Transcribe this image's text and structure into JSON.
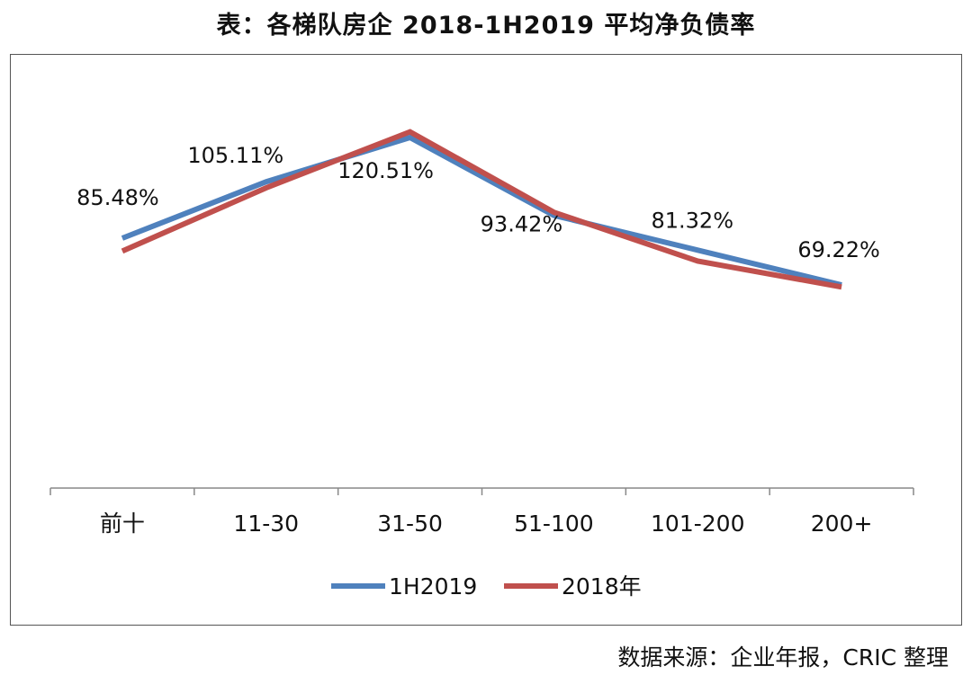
{
  "title": "表：各梯队房企 2018-1H2019 平均净负债率",
  "source": "数据来源：企业年报，CRIC 整理",
  "chart_data": {
    "type": "line",
    "title": "表：各梯队房企 2018-1H2019 平均净负债率",
    "categories": [
      "前十",
      "11-30",
      "31-50",
      "51-100",
      "101-200",
      "200+"
    ],
    "series": [
      {
        "name": "1H2019",
        "color": "#4F81BD",
        "values": [
          85.48,
          105.11,
          120.51,
          93.42,
          81.32,
          69.22
        ],
        "labels": [
          "85.48%",
          "105.11%",
          "120.51%",
          "93.42%",
          "81.32%",
          "69.22%"
        ]
      },
      {
        "name": "2018年",
        "color": "#C0504D",
        "values": [
          81.0,
          103.0,
          122.5,
          94.5,
          77.5,
          68.5
        ]
      }
    ],
    "y_axis_visible": false,
    "grid": false,
    "legend_position": "bottom"
  }
}
